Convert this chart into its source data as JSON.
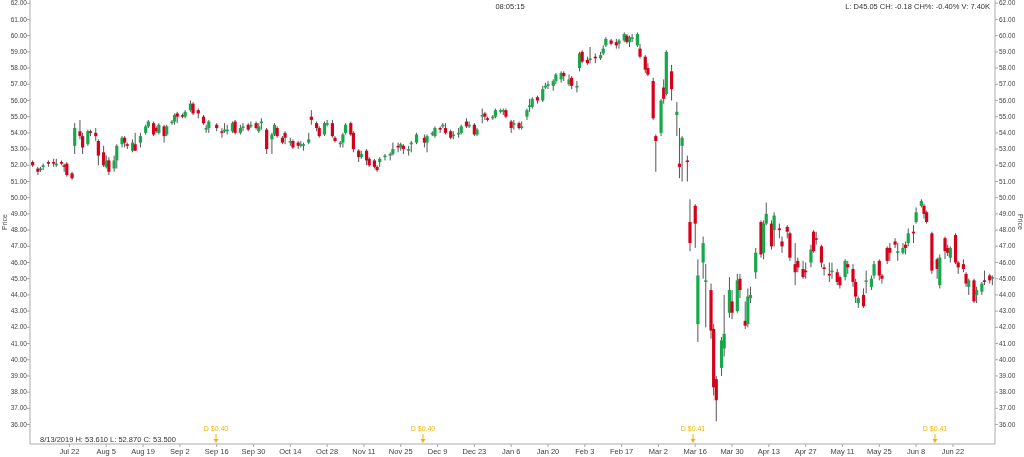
{
  "chart_data": {
    "type": "candlestick",
    "ylabel": "Price",
    "y2label": "Price",
    "annotations": [
      "08:05:15",
      "L: D45.05 CH: -0.18 CH%: -0.40% V: 7.40K",
      "8/13/2019  H: 53.610  L: 52.870  C: 53.500",
      "D $0.40",
      "D $0.40",
      "D $0.41",
      "D $0.41"
    ],
    "xlim": [
      "2019-07-07",
      "2020-07-08"
    ],
    "xticks": [
      {
        "value": "2019-07-22",
        "label": "Jul 22"
      },
      {
        "value": "2019-08-05",
        "label": "Aug 5"
      },
      {
        "value": "2019-08-19",
        "label": "Aug 19"
      },
      {
        "value": "2019-09-02",
        "label": "Sep 2"
      },
      {
        "value": "2019-09-16",
        "label": "Sep 16"
      },
      {
        "value": "2019-09-30",
        "label": "Sep 30"
      },
      {
        "value": "2019-10-14",
        "label": "Oct 14"
      },
      {
        "value": "2019-10-28",
        "label": "Oct 28"
      },
      {
        "value": "2019-11-11",
        "label": "Nov 11"
      },
      {
        "value": "2019-11-25",
        "label": "Nov 25"
      },
      {
        "value": "2019-12-09",
        "label": "Dec 9"
      },
      {
        "value": "2019-12-23",
        "label": "Dec 23"
      },
      {
        "value": "2020-01-06",
        "label": "Jan 6"
      },
      {
        "value": "2020-01-20",
        "label": "Jan 20"
      },
      {
        "value": "2020-02-03",
        "label": "Feb 3"
      },
      {
        "value": "2020-02-17",
        "label": "Feb 17"
      },
      {
        "value": "2020-03-02",
        "label": "Mar 2"
      },
      {
        "value": "2020-03-16",
        "label": "Mar 16"
      },
      {
        "value": "2020-03-30",
        "label": "Mar 30"
      },
      {
        "value": "2020-04-13",
        "label": "Apr 13"
      },
      {
        "value": "2020-04-27",
        "label": "Apr 27"
      },
      {
        "value": "2020-05-11",
        "label": "May 11"
      },
      {
        "value": "2020-05-25",
        "label": "May 25"
      },
      {
        "value": "2020-06-08",
        "label": "Jun 8"
      },
      {
        "value": "2020-06-22",
        "label": "Jun 22"
      }
    ],
    "ylim": [
      34.8,
      62.2
    ],
    "yticks": [
      {
        "value": 36,
        "label": "36.00"
      },
      {
        "value": 37,
        "label": "37.00"
      },
      {
        "value": 38,
        "label": "38.00"
      },
      {
        "value": 39,
        "label": "39.00"
      },
      {
        "value": 40,
        "label": "40.00"
      },
      {
        "value": 41,
        "label": "41.00"
      },
      {
        "value": 42,
        "label": "42.00"
      },
      {
        "value": 43,
        "label": "43.00"
      },
      {
        "value": 44,
        "label": "44.00"
      },
      {
        "value": 45,
        "label": "45.00"
      },
      {
        "value": 46,
        "label": "46.00"
      },
      {
        "value": 47,
        "label": "47.00"
      },
      {
        "value": 48,
        "label": "48.00"
      },
      {
        "value": 49,
        "label": "49.00"
      },
      {
        "value": 50,
        "label": "50.00"
      },
      {
        "value": 51,
        "label": "51.00"
      },
      {
        "value": 52,
        "label": "52.00"
      },
      {
        "value": 53,
        "label": "53.00"
      },
      {
        "value": 54,
        "label": "54.00"
      },
      {
        "value": 55,
        "label": "55.00"
      },
      {
        "value": 56,
        "label": "56.00"
      },
      {
        "value": 57,
        "label": "57.00"
      },
      {
        "value": 58,
        "label": "58.00"
      },
      {
        "value": 59,
        "label": "59.00"
      },
      {
        "value": 60,
        "label": "60.00"
      },
      {
        "value": 61,
        "label": "61.00"
      },
      {
        "value": 62,
        "label": "62.00"
      }
    ],
    "y2lim": [
      34.8,
      62.2
    ],
    "y2ticks": [
      {
        "value": 36,
        "label": "36.00"
      },
      {
        "value": 37,
        "label": "37.00"
      },
      {
        "value": 38,
        "label": "38.00"
      },
      {
        "value": 39,
        "label": "39.00"
      },
      {
        "value": 40,
        "label": "40.00"
      },
      {
        "value": 41,
        "label": "41.00"
      },
      {
        "value": 42,
        "label": "42.00"
      },
      {
        "value": 43,
        "label": "43.00"
      },
      {
        "value": 44,
        "label": "44.00"
      },
      {
        "value": 45,
        "label": "45.00"
      },
      {
        "value": 46,
        "label": "46.00"
      },
      {
        "value": 47,
        "label": "47.00"
      },
      {
        "value": 48,
        "label": "48.00"
      },
      {
        "value": 49,
        "label": "49.00"
      },
      {
        "value": 50,
        "label": "50.00"
      },
      {
        "value": 51,
        "label": "51.00"
      },
      {
        "value": 52,
        "label": "52.00"
      },
      {
        "value": 53,
        "label": "53.00"
      },
      {
        "value": 54,
        "label": "54.00"
      },
      {
        "value": 55,
        "label": "55.00"
      },
      {
        "value": 56,
        "label": "56.00"
      },
      {
        "value": 57,
        "label": "57.00"
      },
      {
        "value": 58,
        "label": "58.00"
      },
      {
        "value": 59,
        "label": "59.00"
      },
      {
        "value": 60,
        "label": "60.00"
      },
      {
        "value": 61,
        "label": "61.00"
      },
      {
        "value": 62,
        "label": "62.00"
      }
    ],
    "x": [
      "2019-07-08",
      "2019-07-10",
      "2019-07-11",
      "2019-07-12",
      "2019-07-14",
      "2019-07-16",
      "2019-07-17",
      "2019-07-19",
      "2019-07-20",
      "2019-07-21",
      "2019-07-23",
      "2019-07-24",
      "2019-07-26",
      "2019-07-27",
      "2019-07-29",
      "2019-07-30",
      "2019-08-01",
      "2019-08-02",
      "2019-08-04",
      "2019-08-05",
      "2019-08-06",
      "2019-08-08",
      "2019-08-09",
      "2019-08-11",
      "2019-08-12",
      "2019-08-13",
      "2019-08-15",
      "2019-08-16",
      "2019-08-18",
      "2019-08-20",
      "2019-08-21",
      "2019-08-23",
      "2019-08-24",
      "2019-08-25",
      "2019-08-27",
      "2019-08-28",
      "2019-08-30",
      "2019-08-31",
      "2019-09-01",
      "2019-09-03",
      "2019-09-04",
      "2019-09-06",
      "2019-09-07",
      "2019-09-09",
      "2019-09-11",
      "2019-09-12",
      "2019-09-13",
      "2019-09-16",
      "2019-09-18",
      "2019-09-19",
      "2019-09-20",
      "2019-09-22",
      "2019-09-23",
      "2019-09-25",
      "2019-09-26",
      "2019-09-28",
      "2019-09-29",
      "2019-10-01",
      "2019-10-02",
      "2019-10-03",
      "2019-10-05",
      "2019-10-07",
      "2019-10-08",
      "2019-10-09",
      "2019-10-11",
      "2019-10-12",
      "2019-10-14",
      "2019-10-15",
      "2019-10-17",
      "2019-10-18",
      "2019-10-19",
      "2019-10-21",
      "2019-10-22",
      "2019-10-24",
      "2019-10-25",
      "2019-10-27",
      "2019-10-28",
      "2019-10-30",
      "2019-10-31",
      "2019-11-02",
      "2019-11-03",
      "2019-11-04",
      "2019-11-06",
      "2019-11-07",
      "2019-11-09",
      "2019-11-10",
      "2019-11-12",
      "2019-11-13",
      "2019-11-15",
      "2019-11-16",
      "2019-11-17",
      "2019-11-19",
      "2019-11-21",
      "2019-11-22",
      "2019-11-24",
      "2019-11-25",
      "2019-11-26",
      "2019-11-28",
      "2019-11-29",
      "2019-12-01",
      "2019-12-04",
      "2019-12-05",
      "2019-12-07",
      "2019-12-08",
      "2019-12-10",
      "2019-12-11",
      "2019-12-12",
      "2019-12-14",
      "2019-12-15",
      "2019-12-17",
      "2019-12-18",
      "2019-12-20",
      "2019-12-21",
      "2019-12-23",
      "2019-12-24",
      "2019-12-26",
      "2019-12-27",
      "2019-12-28",
      "2019-12-30",
      "2019-12-31",
      "2020-01-02",
      "2020-01-03",
      "2020-01-04",
      "2020-01-06",
      "2020-01-07",
      "2020-01-09",
      "2020-01-10",
      "2020-01-12",
      "2020-01-13",
      "2020-01-14",
      "2020-01-16",
      "2020-01-18",
      "2020-01-19",
      "2020-01-20",
      "2020-01-22",
      "2020-01-23",
      "2020-01-25",
      "2020-01-26",
      "2020-01-28",
      "2020-01-29",
      "2020-01-31",
      "2020-02-01",
      "2020-02-02",
      "2020-02-04",
      "2020-02-05",
      "2020-02-07",
      "2020-02-09",
      "2020-02-10",
      "2020-02-11",
      "2020-02-13",
      "2020-02-15",
      "2020-02-16",
      "2020-02-18",
      "2020-02-19",
      "2020-02-20",
      "2020-02-21",
      "2020-02-23",
      "2020-02-24",
      "2020-02-26",
      "2020-02-27",
      "2020-02-29",
      "2020-03-01",
      "2020-03-03",
      "2020-03-04",
      "2020-03-05",
      "2020-03-07",
      "2020-03-09",
      "2020-03-10",
      "2020-03-11",
      "2020-03-13",
      "2020-03-14",
      "2020-03-16",
      "2020-03-17",
      "2020-03-19",
      "2020-03-20",
      "2020-03-22",
      "2020-03-23",
      "2020-03-24",
      "2020-03-26",
      "2020-03-27",
      "2020-03-29",
      "2020-03-30",
      "2020-04-01",
      "2020-04-02",
      "2020-04-04",
      "2020-04-05",
      "2020-04-06",
      "2020-04-08",
      "2020-04-10",
      "2020-04-11",
      "2020-04-12",
      "2020-04-14",
      "2020-04-15",
      "2020-04-17",
      "2020-04-18",
      "2020-04-20",
      "2020-04-21",
      "2020-04-23",
      "2020-04-24",
      "2020-04-26",
      "2020-04-27",
      "2020-04-29",
      "2020-04-30",
      "2020-05-01",
      "2020-05-03",
      "2020-05-04",
      "2020-05-06",
      "2020-05-07",
      "2020-05-09",
      "2020-05-10",
      "2020-05-12",
      "2020-05-13",
      "2020-05-15",
      "2020-05-16",
      "2020-05-17",
      "2020-05-19",
      "2020-05-20",
      "2020-05-22",
      "2020-05-23",
      "2020-05-25",
      "2020-05-26",
      "2020-05-28",
      "2020-05-29",
      "2020-05-31",
      "2020-06-01",
      "2020-06-03",
      "2020-06-04",
      "2020-06-05",
      "2020-06-07",
      "2020-06-08",
      "2020-06-10",
      "2020-06-11",
      "2020-06-12",
      "2020-06-14",
      "2020-06-16",
      "2020-06-17",
      "2020-06-19",
      "2020-06-20",
      "2020-06-21",
      "2020-06-23",
      "2020-06-24",
      "2020-06-26",
      "2020-06-27",
      "2020-06-28",
      "2020-06-30",
      "2020-07-01",
      "2020-07-03",
      "2020-07-04",
      "2020-07-06",
      "2020-07-07"
    ],
    "ohlc": [
      [
        52.2,
        52.3,
        51.9,
        52.0
      ],
      [
        51.8,
        51.9,
        51.4,
        51.6
      ],
      [
        51.7,
        51.9,
        51.6,
        51.8
      ],
      [
        51.9,
        52.1,
        51.7,
        52.0
      ],
      [
        52.2,
        52.3,
        51.9,
        52.1
      ],
      [
        52.2,
        52.4,
        51.9,
        52.1
      ],
      [
        52.0,
        52.4,
        51.9,
        52.1
      ],
      [
        52.2,
        52.3,
        52.0,
        52.1
      ],
      [
        52.0,
        52.1,
        51.6,
        51.9
      ],
      [
        52.1,
        52.2,
        51.3,
        51.4
      ],
      [
        51.5,
        51.6,
        51.1,
        51.2
      ],
      [
        53.2,
        54.6,
        52.7,
        54.3
      ],
      [
        54.1,
        54.8,
        53.6,
        53.8
      ],
      [
        53.8,
        54.0,
        52.7,
        53.1
      ],
      [
        53.3,
        54.2,
        53.2,
        54.1
      ],
      [
        54.1,
        54.2,
        53.8,
        54.0
      ],
      [
        54.0,
        54.3,
        53.5,
        53.8
      ],
      [
        53.5,
        53.6,
        52.0,
        52.6
      ],
      [
        52.8,
        53.2,
        51.9,
        52.0
      ],
      [
        51.9,
        52.6,
        51.8,
        52.3
      ],
      [
        52.3,
        52.5,
        51.4,
        51.6
      ],
      [
        51.8,
        52.6,
        51.6,
        52.3
      ],
      [
        52.3,
        53.3,
        51.8,
        53.2
      ],
      [
        53.3,
        53.8,
        53.1,
        53.7
      ],
      [
        53.7,
        53.8,
        53.1,
        53.4
      ],
      [
        53.3,
        53.4,
        53.0,
        53.2
      ],
      [
        52.9,
        53.6,
        52.8,
        53.4
      ],
      [
        53.3,
        54.0,
        52.9,
        52.9
      ],
      [
        53.4,
        54.0,
        53.1,
        53.8
      ],
      [
        54.0,
        54.5,
        53.9,
        54.4
      ],
      [
        54.4,
        54.8,
        54.3,
        54.7
      ],
      [
        54.6,
        54.7,
        53.8,
        53.9
      ],
      [
        54.3,
        54.4,
        54.0,
        54.1
      ],
      [
        54.0,
        54.6,
        53.9,
        54.5
      ],
      [
        54.4,
        54.5,
        53.4,
        53.8
      ],
      [
        53.9,
        54.5,
        53.8,
        54.4
      ],
      [
        54.6,
        54.8,
        54.5,
        54.7
      ],
      [
        54.7,
        55.2,
        54.5,
        55.1
      ],
      [
        55.2,
        55.3,
        54.6,
        55.0
      ],
      [
        55.1,
        55.2,
        54.9,
        55.0
      ],
      [
        55.0,
        55.4,
        54.9,
        55.3
      ],
      [
        55.4,
        56.0,
        55.3,
        55.8
      ],
      [
        55.8,
        55.9,
        55.1,
        55.2
      ],
      [
        55.4,
        55.5,
        54.9,
        55.2
      ],
      [
        55.0,
        55.1,
        54.5,
        54.6
      ],
      [
        54.2,
        54.5,
        54.0,
        54.3
      ],
      [
        54.3,
        54.8,
        54.0,
        54.7
      ],
      [
        54.5,
        54.6,
        54.1,
        54.3
      ],
      [
        54.1,
        54.3,
        53.7,
        54.0
      ],
      [
        54.1,
        54.6,
        54.0,
        54.2
      ],
      [
        54.1,
        54.5,
        53.9,
        54.2
      ],
      [
        54.1,
        54.7,
        54.0,
        54.6
      ],
      [
        54.7,
        54.8,
        53.9,
        54.0
      ],
      [
        54.0,
        54.5,
        53.9,
        54.3
      ],
      [
        54.3,
        54.6,
        54.1,
        54.4
      ],
      [
        54.5,
        54.6,
        54.1,
        54.2
      ],
      [
        54.4,
        54.7,
        54.3,
        54.5
      ],
      [
        54.6,
        54.7,
        54.2,
        54.3
      ],
      [
        54.1,
        54.6,
        54.0,
        54.4
      ],
      [
        54.6,
        54.9,
        54.2,
        54.7
      ],
      [
        54.2,
        54.3,
        52.7,
        53.0
      ],
      [
        53.6,
        54.0,
        52.7,
        53.9
      ],
      [
        53.9,
        54.6,
        53.8,
        54.5
      ],
      [
        54.3,
        54.4,
        53.7,
        53.8
      ],
      [
        53.7,
        53.8,
        53.3,
        53.4
      ],
      [
        54.0,
        54.1,
        53.3,
        53.7
      ],
      [
        53.4,
        53.7,
        53.2,
        53.5
      ],
      [
        53.5,
        53.6,
        53.0,
        53.1
      ],
      [
        53.4,
        53.5,
        53.0,
        53.2
      ],
      [
        53.2,
        53.5,
        53.1,
        53.3
      ],
      [
        53.2,
        53.4,
        52.9,
        53.3
      ],
      [
        53.4,
        54.0,
        53.3,
        53.6
      ],
      [
        55.0,
        55.4,
        54.5,
        54.8
      ],
      [
        54.6,
        54.7,
        54.1,
        54.3
      ],
      [
        54.3,
        54.4,
        53.7,
        53.8
      ],
      [
        53.9,
        54.7,
        53.8,
        54.6
      ],
      [
        54.5,
        54.8,
        54.4,
        54.6
      ],
      [
        54.6,
        54.8,
        53.7,
        53.8
      ],
      [
        53.7,
        53.8,
        53.4,
        53.5
      ],
      [
        53.3,
        53.5,
        53.1,
        53.4
      ],
      [
        53.4,
        54.0,
        53.1,
        53.9
      ],
      [
        54.0,
        54.6,
        53.9,
        54.5
      ],
      [
        54.6,
        54.7,
        53.8,
        53.9
      ],
      [
        54.0,
        54.1,
        52.8,
        53.0
      ],
      [
        52.9,
        53.0,
        52.2,
        52.5
      ],
      [
        52.5,
        52.9,
        52.4,
        52.7
      ],
      [
        52.9,
        53.0,
        52.0,
        52.3
      ],
      [
        52.4,
        52.5,
        51.9,
        52.0
      ],
      [
        52.3,
        52.4,
        51.8,
        51.9
      ],
      [
        51.9,
        52.0,
        51.6,
        51.7
      ],
      [
        52.2,
        52.5,
        51.9,
        52.4
      ],
      [
        52.5,
        52.7,
        52.3,
        52.6
      ],
      [
        52.6,
        52.8,
        52.3,
        52.7
      ],
      [
        52.7,
        53.4,
        52.6,
        53.0
      ],
      [
        53.2,
        53.4,
        52.8,
        53.1
      ],
      [
        53.1,
        53.4,
        52.9,
        53.3
      ],
      [
        53.2,
        53.3,
        52.7,
        53.0
      ],
      [
        52.9,
        53.2,
        52.6,
        53.0
      ],
      [
        53.3,
        53.5,
        52.8,
        53.4
      ],
      [
        53.4,
        54.0,
        53.3,
        53.9
      ],
      [
        53.7,
        53.9,
        53.1,
        53.4
      ],
      [
        53.4,
        53.9,
        52.8,
        53.8
      ],
      [
        53.9,
        54.1,
        53.8,
        54.0
      ],
      [
        53.8,
        54.4,
        53.7,
        54.3
      ],
      [
        54.3,
        54.4,
        54.0,
        54.2
      ],
      [
        54.4,
        54.6,
        54.3,
        54.5
      ],
      [
        54.3,
        54.6,
        53.9,
        54.0
      ],
      [
        54.1,
        54.2,
        53.6,
        53.7
      ],
      [
        53.8,
        54.1,
        53.6,
        53.9
      ],
      [
        53.9,
        54.3,
        53.7,
        54.0
      ],
      [
        54.0,
        54.5,
        53.9,
        54.4
      ],
      [
        54.7,
        54.9,
        54.3,
        54.4
      ],
      [
        54.4,
        54.7,
        54.3,
        54.5
      ],
      [
        54.5,
        54.6,
        53.8,
        53.9
      ],
      [
        53.9,
        54.3,
        53.8,
        54.2
      ],
      [
        55.0,
        55.5,
        54.6,
        55.1
      ],
      [
        55.2,
        55.3,
        54.8,
        55.0
      ],
      [
        54.9,
        55.0,
        54.7,
        54.8
      ],
      [
        54.9,
        55.1,
        54.8,
        55.0
      ],
      [
        55.0,
        55.5,
        54.9,
        55.4
      ],
      [
        55.3,
        55.5,
        55.2,
        55.4
      ],
      [
        55.3,
        55.5,
        55.1,
        55.4
      ],
      [
        55.4,
        55.5,
        54.9,
        55.0
      ],
      [
        54.7,
        54.8,
        54.0,
        54.3
      ],
      [
        54.5,
        54.8,
        54.2,
        54.6
      ],
      [
        54.6,
        54.7,
        54.2,
        54.3
      ],
      [
        54.3,
        54.7,
        54.2,
        54.4
      ],
      [
        55.0,
        55.5,
        54.8,
        55.4
      ],
      [
        55.6,
        56.1,
        55.3,
        55.7
      ],
      [
        55.6,
        56.2,
        55.5,
        56.1
      ],
      [
        56.2,
        56.3,
        55.8,
        56.0
      ],
      [
        56.0,
        56.9,
        55.9,
        56.7
      ],
      [
        56.8,
        57.1,
        56.7,
        56.9
      ],
      [
        56.9,
        57.2,
        56.7,
        57.0
      ],
      [
        56.9,
        57.3,
        56.6,
        57.2
      ],
      [
        57.2,
        57.7,
        57.0,
        57.6
      ],
      [
        57.3,
        57.8,
        57.1,
        57.7
      ],
      [
        57.7,
        57.8,
        57.2,
        57.5
      ],
      [
        57.0,
        57.6,
        56.9,
        57.3
      ],
      [
        57.4,
        57.5,
        56.7,
        56.9
      ],
      [
        56.8,
        57.2,
        56.5,
        56.9
      ],
      [
        58.0,
        59.0,
        57.8,
        58.9
      ],
      [
        59.0,
        59.1,
        58.3,
        58.4
      ],
      [
        58.5,
        58.7,
        58.2,
        58.3
      ],
      [
        58.5,
        59.3,
        58.3,
        58.6
      ],
      [
        58.7,
        58.9,
        58.3,
        58.6
      ],
      [
        58.6,
        59.0,
        58.5,
        58.8
      ],
      [
        58.9,
        59.4,
        58.8,
        59.2
      ],
      [
        59.4,
        59.9,
        59.3,
        59.8
      ],
      [
        59.7,
        59.8,
        59.4,
        59.5
      ],
      [
        59.6,
        59.8,
        59.2,
        59.4
      ],
      [
        59.5,
        59.8,
        59.2,
        59.7
      ],
      [
        59.7,
        60.2,
        59.6,
        60.1
      ],
      [
        60.0,
        60.1,
        59.5,
        59.6
      ],
      [
        59.6,
        60.0,
        59.3,
        59.9
      ],
      [
        59.8,
        60.1,
        59.6,
        59.9
      ],
      [
        59.4,
        60.2,
        59.3,
        60.1
      ],
      [
        59.2,
        59.5,
        58.6,
        58.7
      ],
      [
        58.7,
        58.8,
        57.7,
        57.9
      ],
      [
        58.0,
        58.3,
        57.5,
        57.6
      ],
      [
        57.2,
        57.4,
        54.8,
        54.9
      ],
      [
        53.8,
        53.9,
        51.6,
        53.5
      ],
      [
        54.0,
        56.1,
        53.8,
        56.0
      ],
      [
        56.8,
        57.3,
        55.8,
        56.1
      ],
      [
        56.4,
        59.1,
        56.3,
        59.0
      ],
      [
        57.8,
        58.2,
        56.0,
        56.7
      ],
      [
        55.1,
        55.9,
        53.8,
        55.3
      ],
      [
        52.1,
        54.3,
        51.2,
        51.9
      ],
      [
        53.2,
        53.8,
        51.0,
        53.7
      ],
      [
        52.3,
        52.6,
        51.0,
        52.2
      ],
      [
        48.5,
        49.9,
        46.7,
        47.2
      ],
      [
        49.5,
        49.6,
        46.9,
        48.4
      ],
      [
        42.2,
        46.2,
        41.1,
        45.2
      ],
      [
        46.0,
        47.6,
        45.0,
        47.2
      ],
      [
        44.8,
        45.9,
        42.0,
        44.9
      ],
      [
        44.3,
        44.7,
        41.3,
        41.8
      ],
      [
        41.9,
        42.2,
        37.8,
        38.3
      ],
      [
        38.8,
        39.0,
        36.2,
        37.5
      ],
      [
        39.5,
        41.4,
        39.0,
        41.2
      ],
      [
        40.7,
        44.0,
        40.2,
        41.6
      ],
      [
        42.9,
        45.1,
        42.6,
        44.3
      ],
      [
        43.6,
        44.3,
        42.5,
        42.9
      ],
      [
        43.0,
        45.3,
        42.9,
        44.9
      ],
      [
        45.0,
        45.3,
        43.8,
        44.3
      ],
      [
        42.4,
        43.6,
        41.9,
        42.1
      ],
      [
        42.2,
        44.4,
        42.0,
        43.9
      ],
      [
        43.8,
        44.5,
        43.5,
        44.0
      ],
      [
        45.4,
        46.9,
        45.0,
        46.6
      ],
      [
        48.5,
        48.6,
        46.3,
        46.5
      ],
      [
        46.6,
        48.6,
        46.2,
        48.4
      ],
      [
        48.4,
        49.7,
        48.3,
        49.0
      ],
      [
        48.4,
        48.6,
        46.8,
        47.0
      ],
      [
        48.0,
        49.1,
        47.0,
        48.9
      ],
      [
        48.1,
        48.4,
        47.5,
        48.0
      ],
      [
        47.3,
        47.6,
        46.6,
        47.0
      ],
      [
        48.2,
        48.3,
        47.5,
        47.9
      ],
      [
        47.8,
        47.9,
        46.1,
        46.3
      ],
      [
        45.9,
        47.2,
        44.6,
        45.4
      ],
      [
        46.1,
        46.3,
        45.4,
        45.7
      ],
      [
        45.6,
        46.1,
        45.0,
        45.1
      ],
      [
        45.5,
        46.0,
        45.0,
        45.4
      ],
      [
        46.0,
        47.1,
        45.7,
        46.8
      ],
      [
        47.9,
        48.0,
        46.6,
        46.7
      ],
      [
        47.5,
        47.9,
        47.1,
        47.4
      ],
      [
        47.0,
        47.1,
        45.7,
        46.0
      ],
      [
        45.7,
        45.9,
        45.2,
        45.6
      ],
      [
        45.3,
        46.0,
        44.8,
        45.2
      ],
      [
        45.4,
        46.0,
        45.0,
        45.5
      ],
      [
        45.4,
        45.6,
        44.6,
        44.8
      ],
      [
        45.1,
        45.2,
        44.4,
        44.6
      ],
      [
        45.1,
        46.2,
        44.9,
        46.1
      ],
      [
        45.9,
        46.1,
        45.3,
        45.7
      ],
      [
        45.6,
        45.9,
        44.5,
        44.8
      ],
      [
        44.8,
        45.0,
        43.5,
        43.9
      ],
      [
        43.5,
        43.9,
        43.2,
        43.8
      ],
      [
        44.0,
        44.4,
        43.2,
        43.3
      ],
      [
        44.8,
        45.5,
        44.1,
        44.9
      ],
      [
        44.5,
        45.2,
        44.3,
        45.0
      ],
      [
        45.2,
        46.1,
        45.0,
        45.9
      ],
      [
        46.1,
        46.2,
        44.9,
        45.2
      ],
      [
        45.2,
        45.3,
        44.7,
        45.0
      ],
      [
        46.9,
        47.0,
        45.9,
        46.1
      ],
      [
        46.9,
        47.2,
        46.1,
        46.6
      ],
      [
        47.3,
        47.5,
        46.9,
        47.1
      ],
      [
        46.6,
        47.2,
        46.1,
        46.7
      ],
      [
        46.6,
        47.2,
        46.5,
        46.9
      ],
      [
        47.1,
        47.3,
        46.5,
        46.9
      ],
      [
        47.2,
        48.1,
        47.0,
        47.8
      ],
      [
        47.9,
        48.3,
        47.2,
        47.8
      ],
      [
        48.5,
        49.4,
        48.4,
        49.1
      ],
      [
        49.5,
        49.9,
        49.4,
        49.8
      ],
      [
        49.5,
        49.6,
        48.7,
        49.0
      ],
      [
        49.1,
        49.2,
        48.4,
        48.5
      ],
      [
        47.8,
        47.9,
        45.3,
        45.5
      ],
      [
        46.2,
        46.3,
        45.0,
        45.6
      ],
      [
        44.6,
        46.5,
        44.4,
        46.3
      ],
      [
        47.5,
        47.6,
        46.2,
        46.7
      ],
      [
        46.9,
        47.1,
        46.4,
        46.6
      ],
      [
        46.3,
        47.0,
        46.0,
        46.9
      ],
      [
        47.7,
        47.8,
        45.9,
        46.0
      ],
      [
        46.0,
        46.1,
        45.3,
        45.7
      ],
      [
        45.9,
        46.2,
        45.4,
        45.6
      ],
      [
        45.3,
        45.4,
        44.5,
        44.7
      ],
      [
        44.5,
        45.0,
        44.0,
        44.9
      ],
      [
        44.9,
        45.0,
        43.5,
        43.6
      ],
      [
        44.0,
        44.5,
        43.5,
        44.3
      ],
      [
        44.2,
        44.8,
        44.0,
        44.7
      ],
      [
        44.9,
        45.5,
        44.6,
        44.8
      ],
      [
        45.2,
        45.3,
        44.7,
        44.9
      ],
      [
        45.0,
        45.2,
        44.6,
        45.1
      ]
    ]
  }
}
